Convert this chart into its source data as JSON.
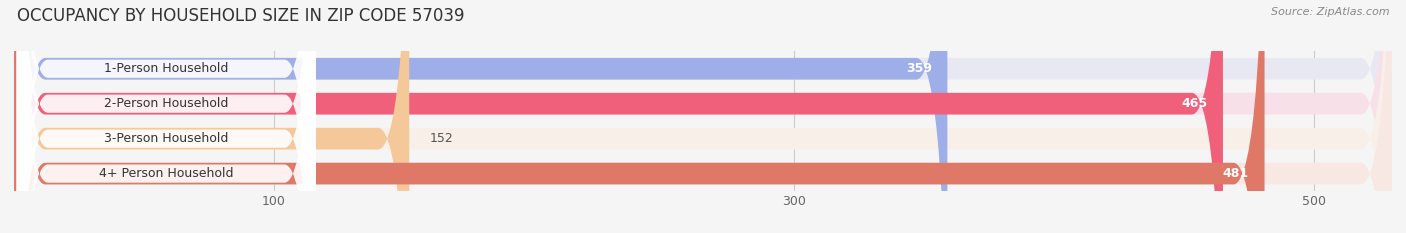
{
  "title": "OCCUPANCY BY HOUSEHOLD SIZE IN ZIP CODE 57039",
  "source": "Source: ZipAtlas.com",
  "categories": [
    "1-Person Household",
    "2-Person Household",
    "3-Person Household",
    "4+ Person Household"
  ],
  "values": [
    359,
    465,
    152,
    481
  ],
  "bar_colors": [
    "#9daee8",
    "#f0607a",
    "#f5c89a",
    "#e07868"
  ],
  "label_colors": [
    "#ffffff",
    "#ffffff",
    "#555555",
    "#ffffff"
  ],
  "bg_colors": [
    "#e8e8f2",
    "#f8e0e8",
    "#f8f0e8",
    "#f8e8e4"
  ],
  "xlim": [
    0,
    530
  ],
  "xticks": [
    100,
    300,
    500
  ],
  "background_color": "#f5f5f5",
  "title_fontsize": 12,
  "bar_height": 0.62,
  "label_fontsize": 9,
  "value_fontsize": 9,
  "bar_rounding": 12
}
